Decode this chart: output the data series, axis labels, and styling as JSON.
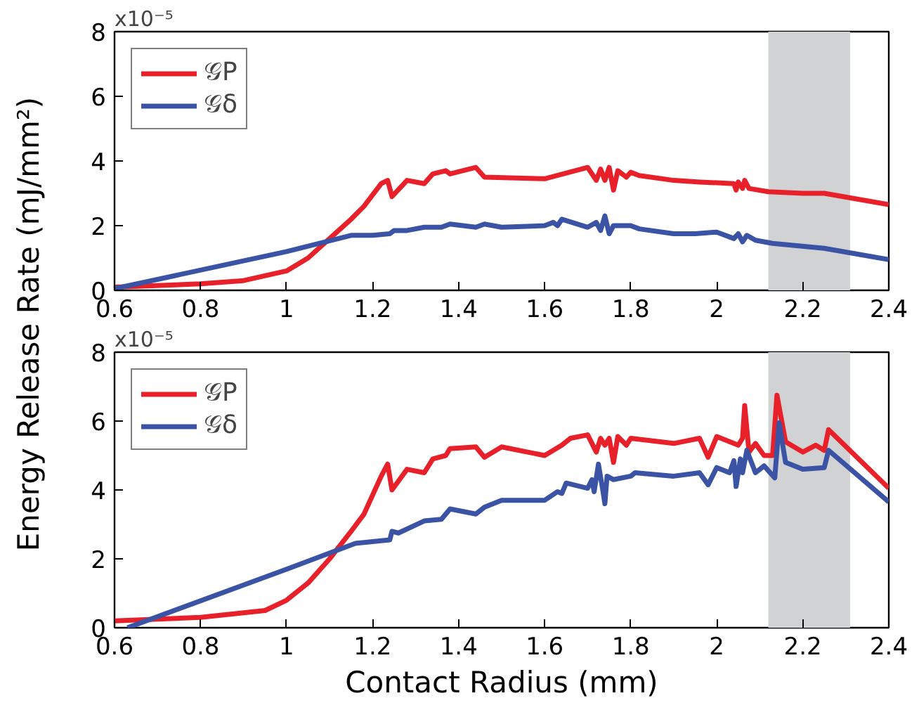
{
  "chart_data": [
    {
      "type": "line",
      "ylabel": "Energy Release Rate (mJ/mm²)",
      "annotations": [
        "x10⁻⁵"
      ],
      "xlim": [
        0.6,
        2.4
      ],
      "ylim": [
        0,
        8
      ],
      "xticks": [
        0.6,
        0.8,
        1,
        1.2,
        1.4,
        1.6,
        1.8,
        2,
        2.2,
        2.4
      ],
      "yticks": [
        0,
        2,
        4,
        6,
        8
      ],
      "grid": false,
      "legend": "top left",
      "bands": [
        {
          "axis": "x",
          "from": 2.12,
          "to": 2.31,
          "color": "#d1d2d4"
        }
      ],
      "series": [
        {
          "name": "𝒢P",
          "color": "#e8202a",
          "x": [
            0.6,
            0.8,
            0.9,
            1.0,
            1.05,
            1.1,
            1.15,
            1.18,
            1.22,
            1.235,
            1.245,
            1.28,
            1.32,
            1.34,
            1.37,
            1.38,
            1.44,
            1.46,
            1.6,
            1.7,
            1.72,
            1.73,
            1.74,
            1.75,
            1.76,
            1.77,
            1.79,
            1.8,
            1.82,
            1.9,
            1.96,
            2.04,
            2.045,
            2.05,
            2.06,
            2.065,
            2.075,
            2.12,
            2.2,
            2.25,
            2.4
          ],
          "values": [
            0.1,
            0.2,
            0.3,
            0.6,
            1.0,
            1.6,
            2.2,
            2.6,
            3.3,
            3.4,
            2.9,
            3.4,
            3.3,
            3.6,
            3.7,
            3.6,
            3.8,
            3.5,
            3.45,
            3.8,
            3.4,
            3.75,
            3.4,
            3.8,
            3.1,
            3.7,
            3.5,
            3.65,
            3.55,
            3.4,
            3.35,
            3.3,
            3.1,
            3.35,
            3.15,
            3.4,
            3.15,
            3.05,
            3.0,
            3.0,
            2.65
          ]
        },
        {
          "name": "𝒢δ",
          "color": "#3a53a4",
          "x": [
            0.6,
            1.0,
            1.15,
            1.2,
            1.24,
            1.25,
            1.28,
            1.32,
            1.36,
            1.38,
            1.44,
            1.46,
            1.5,
            1.6,
            1.62,
            1.63,
            1.64,
            1.7,
            1.72,
            1.73,
            1.74,
            1.75,
            1.76,
            1.8,
            1.82,
            1.9,
            1.95,
            2.0,
            2.04,
            2.05,
            2.06,
            2.07,
            2.09,
            2.13,
            2.25,
            2.4
          ],
          "values": [
            0.05,
            1.2,
            1.7,
            1.7,
            1.75,
            1.85,
            1.85,
            1.95,
            1.95,
            2.05,
            1.95,
            2.05,
            1.95,
            2.0,
            2.1,
            2.0,
            2.2,
            1.95,
            2.1,
            1.85,
            2.3,
            1.75,
            2.0,
            2.0,
            1.9,
            1.75,
            1.75,
            1.8,
            1.6,
            1.75,
            1.5,
            1.7,
            1.55,
            1.45,
            1.3,
            0.95
          ]
        }
      ]
    },
    {
      "type": "line",
      "xlabel": "Contact Radius (mm)",
      "annotations": [
        "x10⁻⁵"
      ],
      "xlim": [
        0.6,
        2.4
      ],
      "ylim": [
        0,
        8
      ],
      "xticks": [
        0.6,
        0.8,
        1,
        1.2,
        1.4,
        1.6,
        1.8,
        2,
        2.2,
        2.4
      ],
      "yticks": [
        0,
        2,
        4,
        6,
        8
      ],
      "grid": false,
      "legend": "top left",
      "bands": [
        {
          "axis": "x",
          "from": 2.12,
          "to": 2.31,
          "color": "#d1d2d4"
        }
      ],
      "series": [
        {
          "name": "𝒢P",
          "color": "#e8202a",
          "x": [
            0.6,
            0.8,
            0.95,
            1.0,
            1.05,
            1.1,
            1.15,
            1.18,
            1.22,
            1.235,
            1.245,
            1.28,
            1.32,
            1.34,
            1.37,
            1.38,
            1.44,
            1.46,
            1.5,
            1.6,
            1.64,
            1.66,
            1.7,
            1.72,
            1.73,
            1.74,
            1.75,
            1.76,
            1.77,
            1.79,
            1.8,
            1.9,
            1.96,
            1.98,
            2.0,
            2.05,
            2.06,
            2.065,
            2.075,
            2.09,
            2.11,
            2.13,
            2.14,
            2.16,
            2.2,
            2.23,
            2.25,
            2.26,
            2.4
          ],
          "values": [
            0.2,
            0.3,
            0.5,
            0.8,
            1.3,
            2.0,
            2.8,
            3.3,
            4.4,
            4.75,
            4.0,
            4.6,
            4.5,
            4.9,
            5.0,
            5.2,
            5.25,
            4.95,
            5.25,
            5.0,
            5.3,
            5.5,
            5.6,
            5.1,
            5.5,
            5.3,
            5.5,
            4.8,
            5.55,
            5.3,
            5.5,
            5.35,
            5.5,
            4.95,
            5.55,
            5.3,
            5.5,
            6.45,
            5.1,
            5.35,
            5.0,
            5.0,
            6.75,
            5.4,
            5.1,
            5.3,
            5.15,
            5.75,
            4.05
          ]
        },
        {
          "name": "𝒢δ",
          "color": "#3a53a4",
          "x": [
            0.63,
            1.0,
            1.16,
            1.24,
            1.245,
            1.26,
            1.32,
            1.36,
            1.38,
            1.44,
            1.46,
            1.5,
            1.6,
            1.63,
            1.64,
            1.65,
            1.7,
            1.71,
            1.715,
            1.725,
            1.735,
            1.74,
            1.745,
            1.76,
            1.8,
            1.81,
            1.9,
            1.96,
            1.98,
            2.0,
            2.03,
            2.04,
            2.045,
            2.055,
            2.06,
            2.07,
            2.09,
            2.11,
            2.135,
            2.145,
            2.16,
            2.2,
            2.25,
            2.26,
            2.4
          ],
          "values": [
            0.0,
            1.7,
            2.45,
            2.55,
            2.8,
            2.75,
            3.1,
            3.15,
            3.45,
            3.3,
            3.5,
            3.7,
            3.7,
            3.95,
            3.9,
            4.2,
            4.05,
            4.3,
            3.95,
            4.75,
            4.0,
            3.6,
            4.4,
            4.3,
            4.4,
            4.5,
            4.4,
            4.5,
            4.15,
            4.65,
            4.5,
            4.85,
            4.1,
            4.9,
            4.5,
            5.15,
            4.5,
            4.7,
            4.35,
            5.95,
            4.8,
            4.6,
            4.65,
            5.15,
            3.65
          ]
        }
      ]
    }
  ]
}
